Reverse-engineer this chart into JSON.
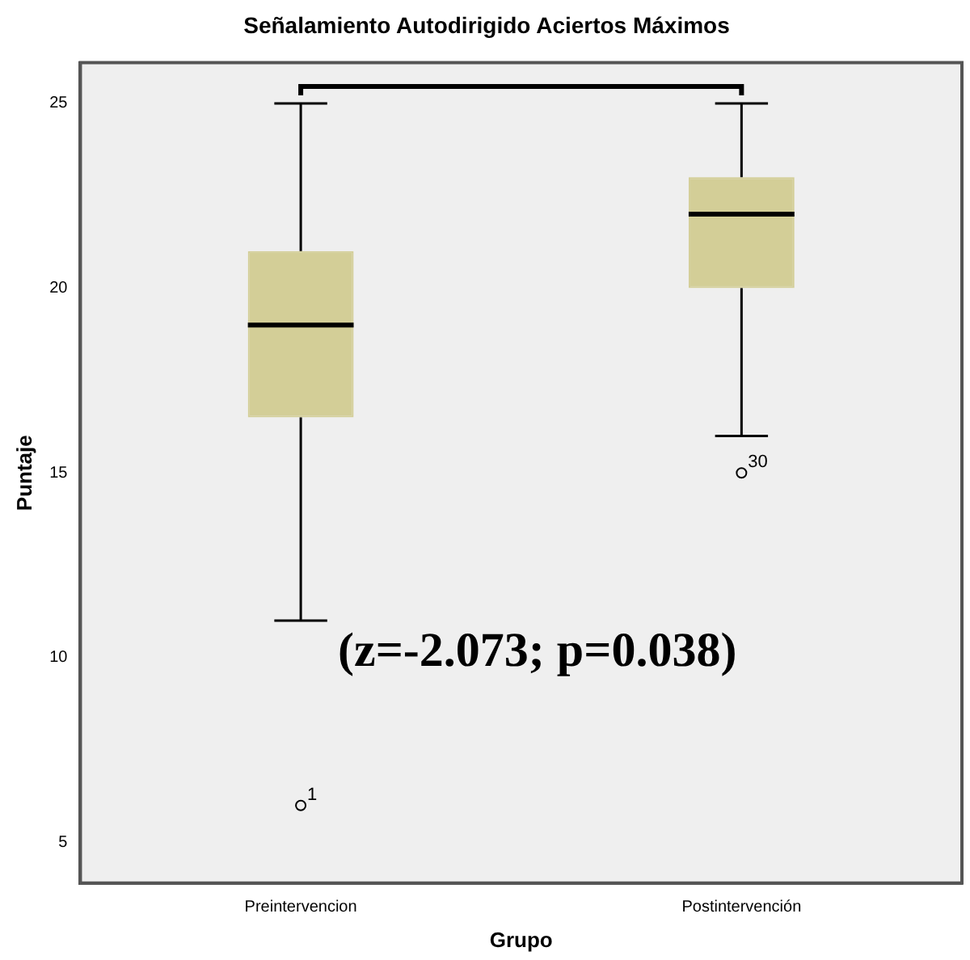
{
  "chart_data": {
    "type": "box",
    "title": "Señalamiento Autodirigido Aciertos Máximos",
    "xlabel": "Grupo",
    "ylabel": "Puntaje",
    "categories": [
      "Preintervencion",
      "Postintervención"
    ],
    "color": "#d3ce97",
    "boxes": [
      {
        "low": 11,
        "q1": 16.5,
        "median": 19,
        "q3": 21,
        "high": 25,
        "outliers": [
          6
        ]
      },
      {
        "low": 16,
        "q1": 20,
        "median": 22,
        "q3": 23,
        "high": 25,
        "outliers": [
          15
        ]
      }
    ],
    "ylim": [
      3.9,
      26.1
    ],
    "yticks": [
      5,
      10,
      15,
      20,
      25
    ],
    "grid": false,
    "legend": false,
    "annotations": [
      "(z=-2.073; p=0.038)",
      "1",
      "30"
    ]
  }
}
